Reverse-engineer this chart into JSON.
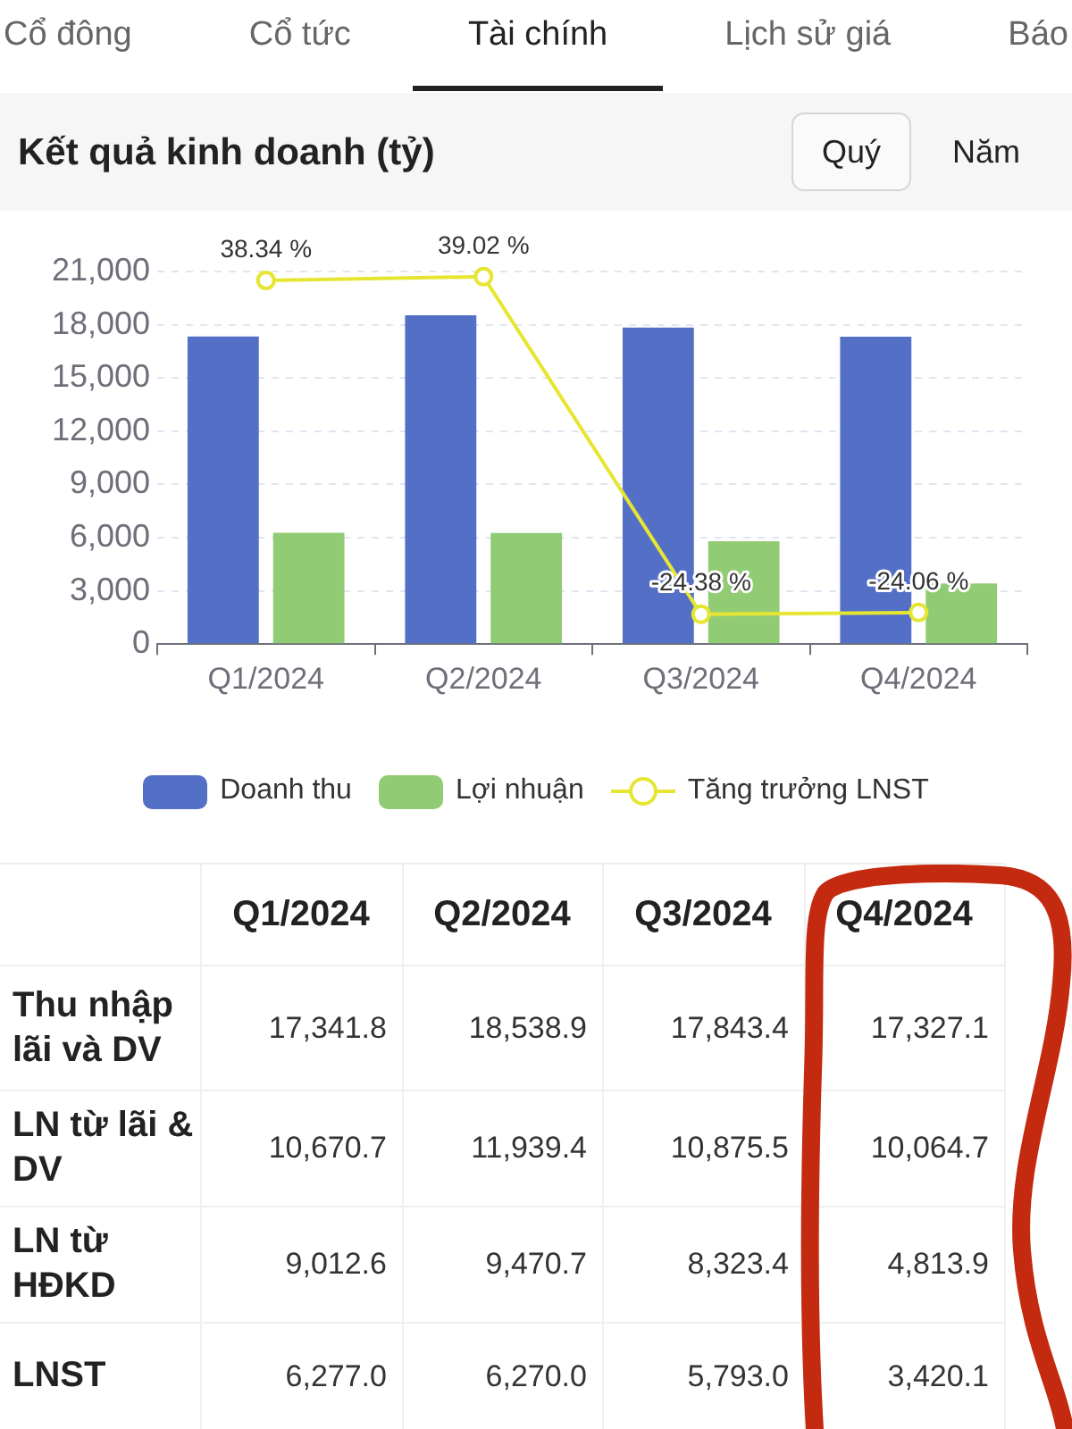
{
  "chart_data": [
    {
      "type": "bar",
      "title": "Kết quả kinh doanh (tỷ)",
      "annotations": [
        "Cổ đông",
        "Cổ tức",
        "Tài chính",
        "Lịch sử giá",
        "Báo",
        "Quý",
        "Năm"
      ],
      "categories": [
        "Q1/2024",
        "Q2/2024",
        "Q3/2024",
        "Q4/2024"
      ],
      "series": [
        {
          "name": "Doanh thu",
          "color": "#5470c6",
          "values": [
            17341.8,
            18538.9,
            17843.4,
            17327.1
          ]
        },
        {
          "name": "Lợi nhuận",
          "color": "#91cc75",
          "values": [
            6277.0,
            6270.0,
            5793.0,
            3420.1
          ]
        },
        {
          "name": "Tăng trưởng LNST",
          "type": "line",
          "axis": "y2",
          "color": "#e6e632",
          "values": [
            38.34,
            39.02,
            -24.38,
            -24.06
          ],
          "value_labels": [
            "38.34 %",
            "39.02 %",
            "-24.38 %",
            "-24.06 %"
          ]
        }
      ],
      "ylim": [
        0,
        21000
      ],
      "yticks": [
        0,
        {
          "value": 3000,
          "label": "3,000"
        },
        {
          "value": 6000,
          "label": "6,000"
        },
        {
          "value": 9000,
          "label": "9,000"
        },
        {
          "value": 12000,
          "label": "12,000"
        },
        {
          "value": 15000,
          "label": "15,000"
        },
        {
          "value": 18000,
          "label": "18,000"
        },
        {
          "value": 21000,
          "label": "21,000"
        }
      ],
      "grid": "y",
      "legend": "bottom",
      "marker": "circle"
    },
    {
      "type": "other",
      "categories": [
        "Q1/2024",
        "Q2/2024",
        "Q3/2024",
        "Q4/2024"
      ],
      "series": [
        {
          "name": "Thu nhập lãi và DV",
          "values": [
            17341.8,
            18538.9,
            17843.4,
            17327.1
          ],
          "value_labels": [
            "17,341.8",
            "18,538.9",
            "17,843.4",
            "17,327.1"
          ]
        },
        {
          "name": "LN từ lãi & DV",
          "values": [
            10670.7,
            11939.4,
            10875.5,
            10064.7
          ],
          "value_labels": [
            "10,670.7",
            "11,939.4",
            "10,875.5",
            "10,064.7"
          ]
        },
        {
          "name": "LN từ HĐKD",
          "values": [
            9012.6,
            9470.7,
            8323.4,
            4813.9
          ],
          "value_labels": [
            "9,012.6",
            "9,470.7",
            "8,323.4",
            "4,813.9"
          ]
        },
        {
          "name": "LNST",
          "values": [
            6277.0,
            6270.0,
            5793.0,
            3420.1
          ],
          "value_labels": [
            "6,277.0",
            "6,270.0",
            "5,793.0",
            "3,420.1"
          ]
        }
      ]
    }
  ]
}
